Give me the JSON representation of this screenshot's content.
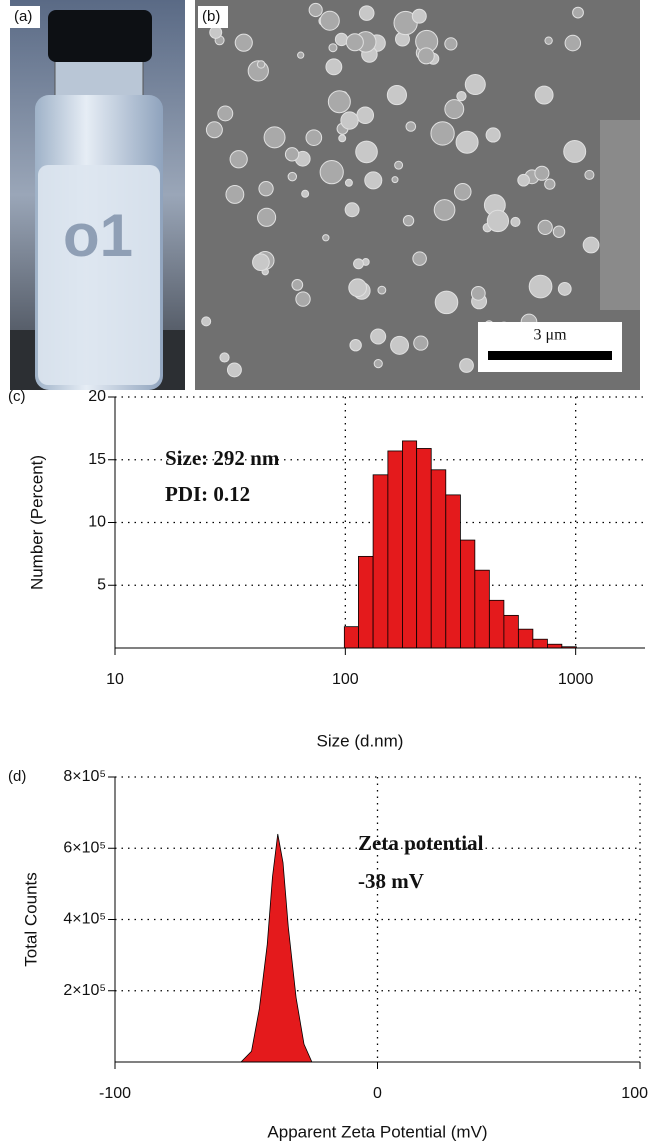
{
  "panels": {
    "a": "(a)",
    "b": "(b)",
    "scale_bar": "3 μm"
  },
  "chart_data": [
    {
      "type": "histogram",
      "panel_label": "(c)",
      "x_label": "Size (d.nm)",
      "y_label": "Number (Percent)",
      "annotations": [
        "Size: 292 nm",
        "PDI: 0.12"
      ],
      "bins": [
        99,
        114,
        132,
        153,
        177,
        204,
        236,
        273,
        316,
        365,
        422,
        488,
        564,
        652,
        754,
        871,
        1007
      ],
      "values": [
        1.7,
        7.3,
        13.8,
        15.7,
        16.5,
        15.9,
        14.2,
        12.2,
        8.6,
        6.2,
        3.8,
        2.6,
        1.5,
        0.7,
        0.3,
        0.1
      ],
      "color": "#e41a1c",
      "xscale": "log",
      "xlim": [
        10,
        2000
      ],
      "xticks": [
        10,
        100,
        1000
      ],
      "ylim": [
        0,
        20
      ],
      "yticks": [
        5,
        10,
        15,
        20
      ],
      "grid": true
    },
    {
      "type": "area",
      "panel_label": "(d)",
      "x_label": "Apparent Zeta Potential (mV)",
      "y_label": "Total Counts",
      "annotations": [
        "Zeta potential",
        "-38 mV"
      ],
      "x": [
        -52,
        -48,
        -45,
        -42,
        -40,
        -38,
        -36,
        -34,
        -31,
        -28,
        -25
      ],
      "values": [
        0,
        30000,
        150000,
        330000,
        520000,
        640000,
        560000,
        380000,
        180000,
        50000,
        0
      ],
      "color": "#e41a1c",
      "xlim": [
        -100,
        100
      ],
      "xticks": [
        -100,
        0,
        100
      ],
      "ylim": [
        0,
        800000
      ],
      "yticks": [
        {
          "value": 200000,
          "label": "2×10⁵"
        },
        {
          "value": 400000,
          "label": "4×10⁵"
        },
        {
          "value": 600000,
          "label": "6×10⁵"
        },
        {
          "value": 800000,
          "label": "8×10⁵"
        }
      ],
      "grid": true
    }
  ]
}
